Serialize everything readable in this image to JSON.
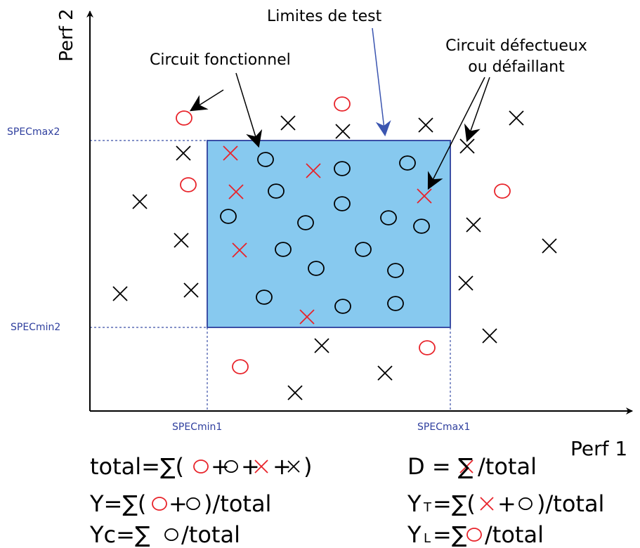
{
  "axes": {
    "y_label": "Perf 2",
    "x_label": "Perf 1"
  },
  "spec_labels": {
    "max2": "SPECmax2",
    "min2": "SPECmin2",
    "min1": "SPECmin1",
    "max1": "SPECmax1"
  },
  "annotations": {
    "test_limits": "Limites de test",
    "functional": "Circuit fonctionnel",
    "defective": [
      "Circuit défectueux",
      "ou défaillant"
    ]
  },
  "formulas": {
    "total": [
      "total=∑(",
      "+",
      "+",
      "+",
      ")"
    ],
    "d": [
      "D = ∑",
      "/total"
    ],
    "y": [
      "Y=∑(",
      "+",
      ")/total"
    ],
    "yt": [
      "Y",
      "T",
      "=∑(",
      "+",
      ")/total"
    ],
    "yc": [
      "Yc=∑",
      "/total"
    ],
    "yl": [
      "Y",
      "L",
      "=∑",
      "/total"
    ]
  }
}
